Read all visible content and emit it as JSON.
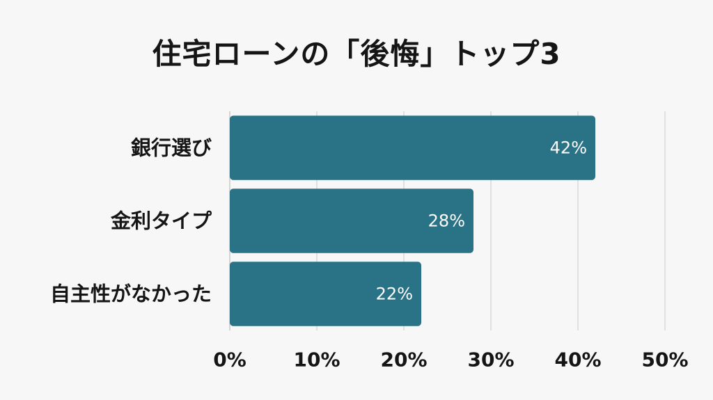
{
  "chart_data": {
    "type": "bar",
    "orientation": "horizontal",
    "title": "住宅ローンの「後悔」トップ3",
    "categories": [
      "銀行選び",
      "金利タイプ",
      "自主性がなかった"
    ],
    "values": [
      42,
      28,
      22
    ],
    "value_labels": [
      "42%",
      "28%",
      "22%"
    ],
    "x_ticks": [
      "0%",
      "10%",
      "20%",
      "30%",
      "40%",
      "50%"
    ],
    "xlim": [
      0,
      50
    ],
    "grid": true,
    "bar_color": "#2a7285"
  }
}
